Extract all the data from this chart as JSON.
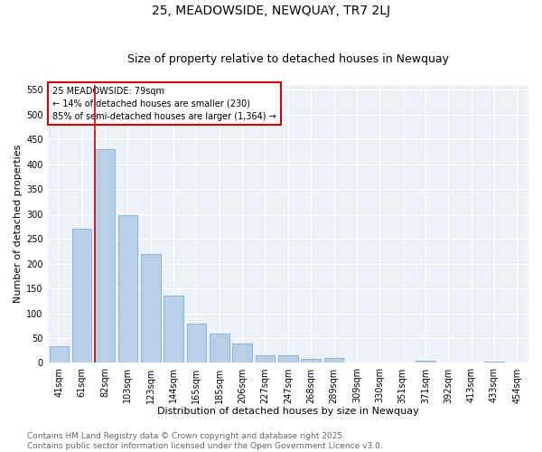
{
  "title": "25, MEADOWSIDE, NEWQUAY, TR7 2LJ",
  "subtitle": "Size of property relative to detached houses in Newquay",
  "xlabel": "Distribution of detached houses by size in Newquay",
  "ylabel": "Number of detached properties",
  "bar_labels": [
    "41sqm",
    "61sqm",
    "82sqm",
    "103sqm",
    "123sqm",
    "144sqm",
    "165sqm",
    "185sqm",
    "206sqm",
    "227sqm",
    "247sqm",
    "268sqm",
    "289sqm",
    "309sqm",
    "330sqm",
    "351sqm",
    "371sqm",
    "392sqm",
    "413sqm",
    "433sqm",
    "454sqm"
  ],
  "bar_values": [
    33,
    270,
    430,
    298,
    220,
    135,
    80,
    60,
    40,
    15,
    16,
    8,
    10,
    0,
    0,
    0,
    5,
    0,
    0,
    3,
    0
  ],
  "bar_color": "#b8cfe8",
  "bar_edge_color": "#7aadd4",
  "vline_color": "#cc0000",
  "property_bin_index": 2,
  "annotation_title": "25 MEADOWSIDE: 79sqm",
  "annotation_line1": "← 14% of detached houses are smaller (230)",
  "annotation_line2": "85% of semi-detached houses are larger (1,364) →",
  "annotation_box_color": "#cc0000",
  "ylim": [
    0,
    560
  ],
  "yticks": [
    0,
    50,
    100,
    150,
    200,
    250,
    300,
    350,
    400,
    450,
    500,
    550
  ],
  "background_color": "#eef2f8",
  "footer_line1": "Contains HM Land Registry data © Crown copyright and database right 2025.",
  "footer_line2": "Contains public sector information licensed under the Open Government Licence v3.0.",
  "title_fontsize": 10,
  "subtitle_fontsize": 9,
  "axis_label_fontsize": 8,
  "tick_fontsize": 7,
  "annotation_fontsize": 7,
  "footer_fontsize": 6.5
}
